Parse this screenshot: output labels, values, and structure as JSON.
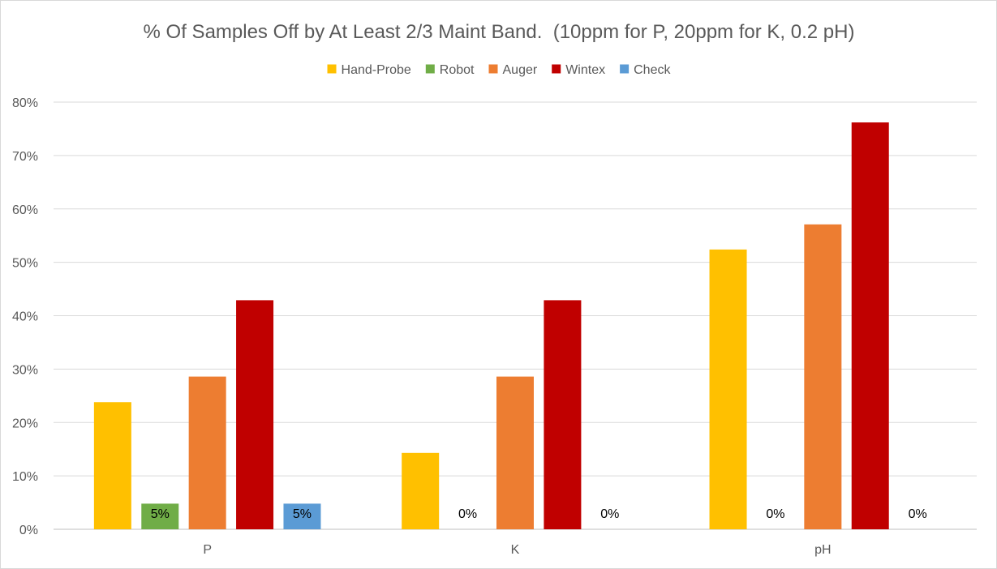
{
  "chart_data": {
    "type": "bar",
    "title": "% Of Samples Off by At Least 2/3 Maint Band.  (10ppm for P, 20ppm for K, 0.2 pH)",
    "xlabel": "",
    "ylabel": "",
    "categories": [
      "P",
      "K",
      "pH"
    ],
    "ylim": [
      0,
      0.8
    ],
    "yticks": [
      0,
      0.1,
      0.2,
      0.3,
      0.4,
      0.5,
      0.6,
      0.7,
      0.8
    ],
    "ytick_labels": [
      "0%",
      "10%",
      "20%",
      "30%",
      "40%",
      "50%",
      "60%",
      "70%",
      "80%"
    ],
    "grid": true,
    "legend_position": "top",
    "series": [
      {
        "name": "Hand-Probe",
        "color": "#FFC000",
        "values": [
          0.238,
          0.143,
          0.524
        ],
        "labels": [
          "",
          "",
          ""
        ]
      },
      {
        "name": "Robot",
        "color": "#70AD47",
        "values": [
          0.048,
          0,
          0
        ],
        "labels": [
          "5%",
          "0%",
          "0%"
        ]
      },
      {
        "name": "Auger",
        "color": "#ED7D31",
        "values": [
          0.286,
          0.286,
          0.571
        ],
        "labels": [
          "",
          "",
          ""
        ]
      },
      {
        "name": "Wintex",
        "color": "#C00000",
        "values": [
          0.429,
          0.429,
          0.762
        ],
        "labels": [
          "",
          "",
          ""
        ]
      },
      {
        "name": "Check",
        "color": "#5B9BD5",
        "values": [
          0.048,
          0,
          0
        ],
        "labels": [
          "5%",
          "0%",
          "0%"
        ]
      }
    ]
  }
}
